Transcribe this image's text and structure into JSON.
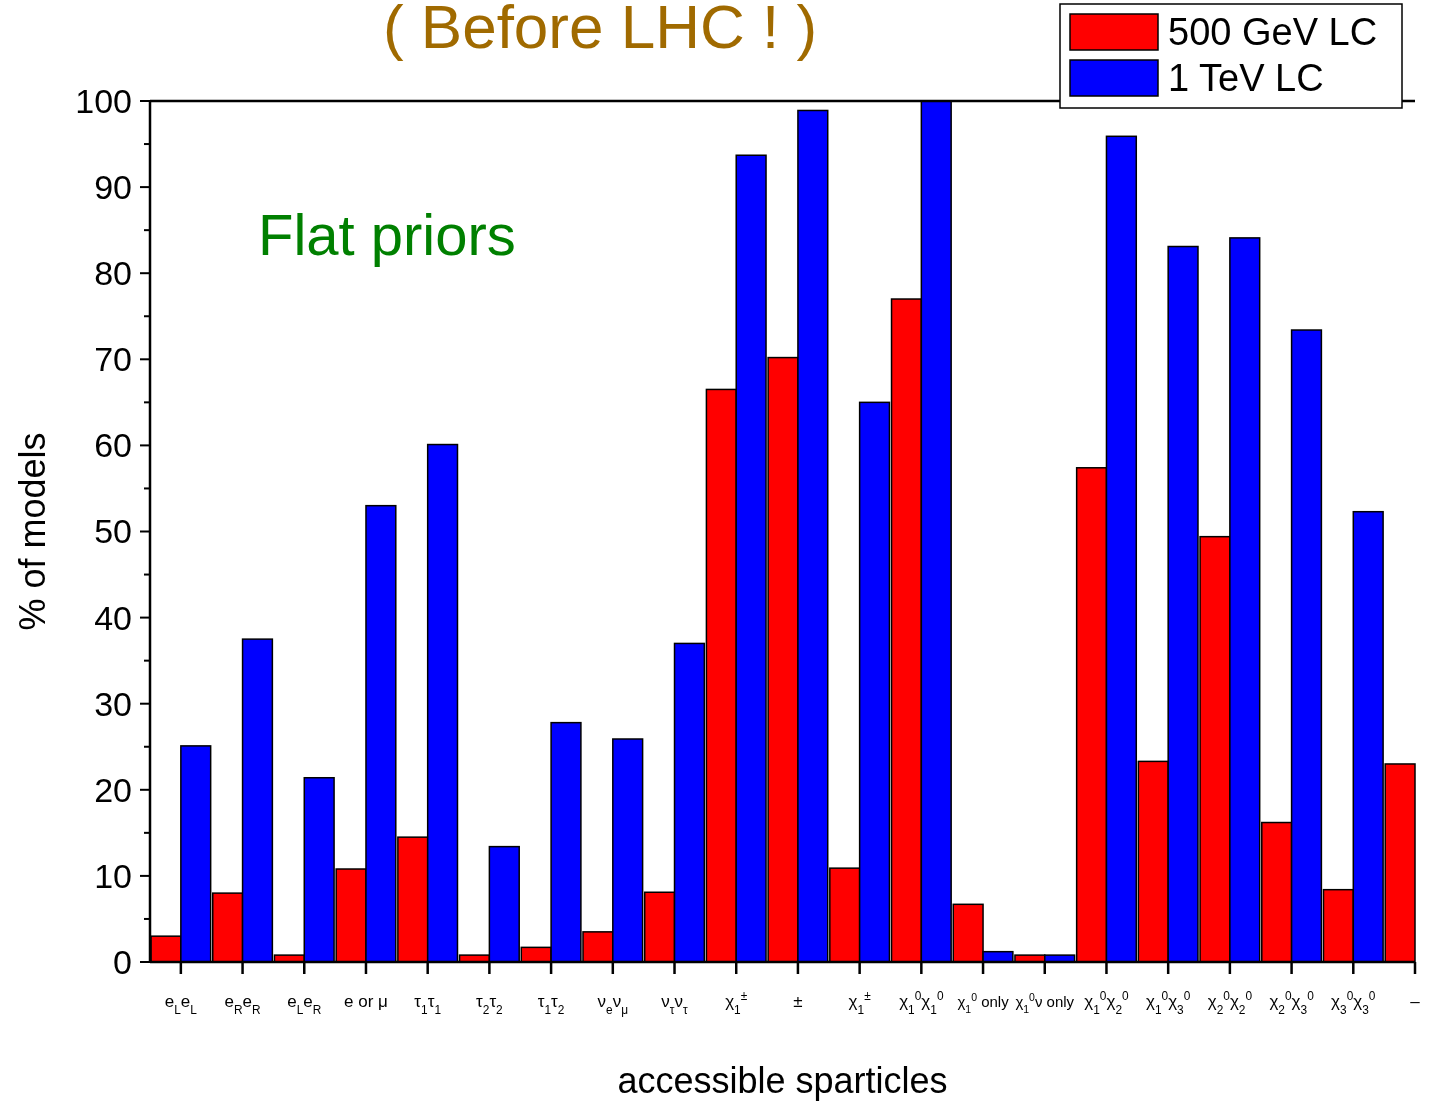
{
  "chart_data": {
    "type": "bar",
    "title": "( Before LHC ! )",
    "xlabel": "accessible sparticles",
    "ylabel": "% of models",
    "annotations": [
      "Flat priors"
    ],
    "categories": [
      "e$_{L}$e$_{L}$",
      "e$_{R}$e$_{R}$",
      "e$_{L}$e$_{R}$",
      "e or μ",
      "τ$_{1}$τ$_{1}$",
      "τ$_{2}$τ$_{2}$",
      "τ$_{1}$τ$_{2}$",
      "ν$_{e}$ν$_{μ}$",
      "ν$_{τ}$ν$_{τ}$",
      "χ$_{1}$$^{±}$",
      "±",
      "χ$_{1}$$^{±}$",
      "χ$_{1}$$^{0}$χ$_{1}$$^{0}$",
      "χ$_{1}$$^{0}$ only",
      "χ$_{1}$$^{0}$ν only",
      "χ$_{1}$$^{0}$χ$_{2}$$^{0}$",
      "χ$_{1}$$^{0}$χ$_{3}$$^{0}$",
      "χ$_{2}$$^{0}$χ$_{2}$$^{0}$",
      "χ$_{2}$$^{0}$χ$_{3}$$^{0}$",
      "χ$_{3}$$^{0}$χ$_{3}$$^{0}$",
      "–"
    ],
    "series": [
      {
        "name": "500 GeV LC",
        "color": "#ff0000",
        "values": [
          3.0,
          8.0,
          0.8,
          10.8,
          14.5,
          0.8,
          1.7,
          3.5,
          8.1,
          66.5,
          70.2,
          10.9,
          77.0,
          6.7,
          0.8,
          57.4,
          23.3,
          49.4,
          16.2,
          8.4,
          23.0
        ]
      },
      {
        "name": "1 TeV LC",
        "color": "#0000ff",
        "values": [
          25.1,
          37.5,
          21.4,
          53.0,
          60.1,
          13.4,
          27.8,
          25.9,
          37.0,
          93.7,
          98.9,
          65.0,
          100,
          1.2,
          0.8,
          95.9,
          83.1,
          84.1,
          73.4,
          52.3,
          null
        ]
      }
    ],
    "ylim": [
      0,
      100
    ],
    "yticks": [
      0,
      10,
      20,
      30,
      40,
      50,
      60,
      70,
      80,
      90,
      100
    ],
    "grid": false,
    "legend": "top right"
  }
}
